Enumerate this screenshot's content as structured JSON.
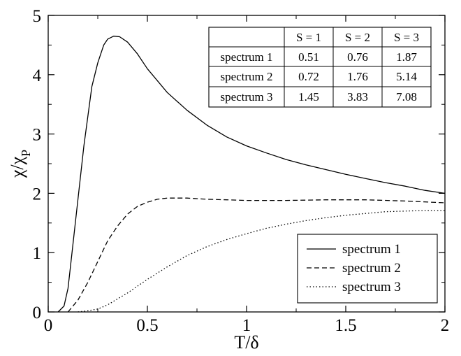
{
  "chart_data": {
    "type": "line",
    "xlabel": "T/δ",
    "ylabel_main": "χ/χ",
    "ylabel_sub": "P",
    "xlim": [
      0,
      2
    ],
    "ylim": [
      0,
      5
    ],
    "xticks": [
      0,
      0.5,
      1,
      1.5,
      2
    ],
    "xtick_labels": [
      "0",
      "0.5",
      "1",
      "1.5",
      "2"
    ],
    "yticks": [
      0,
      1,
      2,
      3,
      4,
      5
    ],
    "ytick_labels": [
      "0",
      "1",
      "2",
      "3",
      "4",
      "5"
    ],
    "grid": false,
    "legend_position": "bottom-right",
    "series": [
      {
        "name": "spectrum 1",
        "style": "solid",
        "points": [
          [
            0.05,
            0.0
          ],
          [
            0.08,
            0.1
          ],
          [
            0.1,
            0.4
          ],
          [
            0.12,
            1.0
          ],
          [
            0.15,
            1.9
          ],
          [
            0.18,
            2.8
          ],
          [
            0.2,
            3.3
          ],
          [
            0.22,
            3.8
          ],
          [
            0.25,
            4.2
          ],
          [
            0.28,
            4.5
          ],
          [
            0.3,
            4.6
          ],
          [
            0.33,
            4.65
          ],
          [
            0.36,
            4.64
          ],
          [
            0.4,
            4.55
          ],
          [
            0.45,
            4.35
          ],
          [
            0.5,
            4.1
          ],
          [
            0.6,
            3.7
          ],
          [
            0.7,
            3.4
          ],
          [
            0.8,
            3.15
          ],
          [
            0.9,
            2.95
          ],
          [
            1.0,
            2.8
          ],
          [
            1.1,
            2.68
          ],
          [
            1.2,
            2.57
          ],
          [
            1.3,
            2.48
          ],
          [
            1.4,
            2.4
          ],
          [
            1.5,
            2.32
          ],
          [
            1.6,
            2.25
          ],
          [
            1.7,
            2.18
          ],
          [
            1.8,
            2.12
          ],
          [
            1.9,
            2.05
          ],
          [
            2.0,
            2.0
          ]
        ]
      },
      {
        "name": "spectrum 2",
        "style": "dashed",
        "points": [
          [
            0.1,
            0.0
          ],
          [
            0.15,
            0.2
          ],
          [
            0.2,
            0.5
          ],
          [
            0.25,
            0.85
          ],
          [
            0.3,
            1.2
          ],
          [
            0.35,
            1.45
          ],
          [
            0.4,
            1.65
          ],
          [
            0.45,
            1.78
          ],
          [
            0.5,
            1.85
          ],
          [
            0.55,
            1.9
          ],
          [
            0.6,
            1.92
          ],
          [
            0.7,
            1.92
          ],
          [
            0.8,
            1.9
          ],
          [
            0.9,
            1.89
          ],
          [
            1.0,
            1.88
          ],
          [
            1.2,
            1.88
          ],
          [
            1.4,
            1.89
          ],
          [
            1.6,
            1.89
          ],
          [
            1.8,
            1.87
          ],
          [
            2.0,
            1.84
          ]
        ]
      },
      {
        "name": "spectrum 3",
        "style": "dotted",
        "points": [
          [
            0.15,
            0.0
          ],
          [
            0.2,
            0.02
          ],
          [
            0.25,
            0.05
          ],
          [
            0.3,
            0.12
          ],
          [
            0.35,
            0.22
          ],
          [
            0.4,
            0.32
          ],
          [
            0.5,
            0.55
          ],
          [
            0.6,
            0.76
          ],
          [
            0.7,
            0.95
          ],
          [
            0.8,
            1.1
          ],
          [
            0.9,
            1.22
          ],
          [
            1.0,
            1.32
          ],
          [
            1.1,
            1.41
          ],
          [
            1.2,
            1.48
          ],
          [
            1.3,
            1.54
          ],
          [
            1.4,
            1.59
          ],
          [
            1.5,
            1.63
          ],
          [
            1.6,
            1.66
          ],
          [
            1.7,
            1.69
          ],
          [
            1.8,
            1.7
          ],
          [
            1.9,
            1.71
          ],
          [
            2.0,
            1.71
          ]
        ]
      }
    ],
    "table": {
      "columns": [
        "",
        "S = 1",
        "S = 2",
        "S = 3"
      ],
      "rows": [
        [
          "spectrum 1",
          "0.51",
          "0.76",
          "1.87"
        ],
        [
          "spectrum 2",
          "0.72",
          "1.76",
          "5.14"
        ],
        [
          "spectrum 3",
          "1.45",
          "3.83",
          "7.08"
        ]
      ]
    }
  }
}
